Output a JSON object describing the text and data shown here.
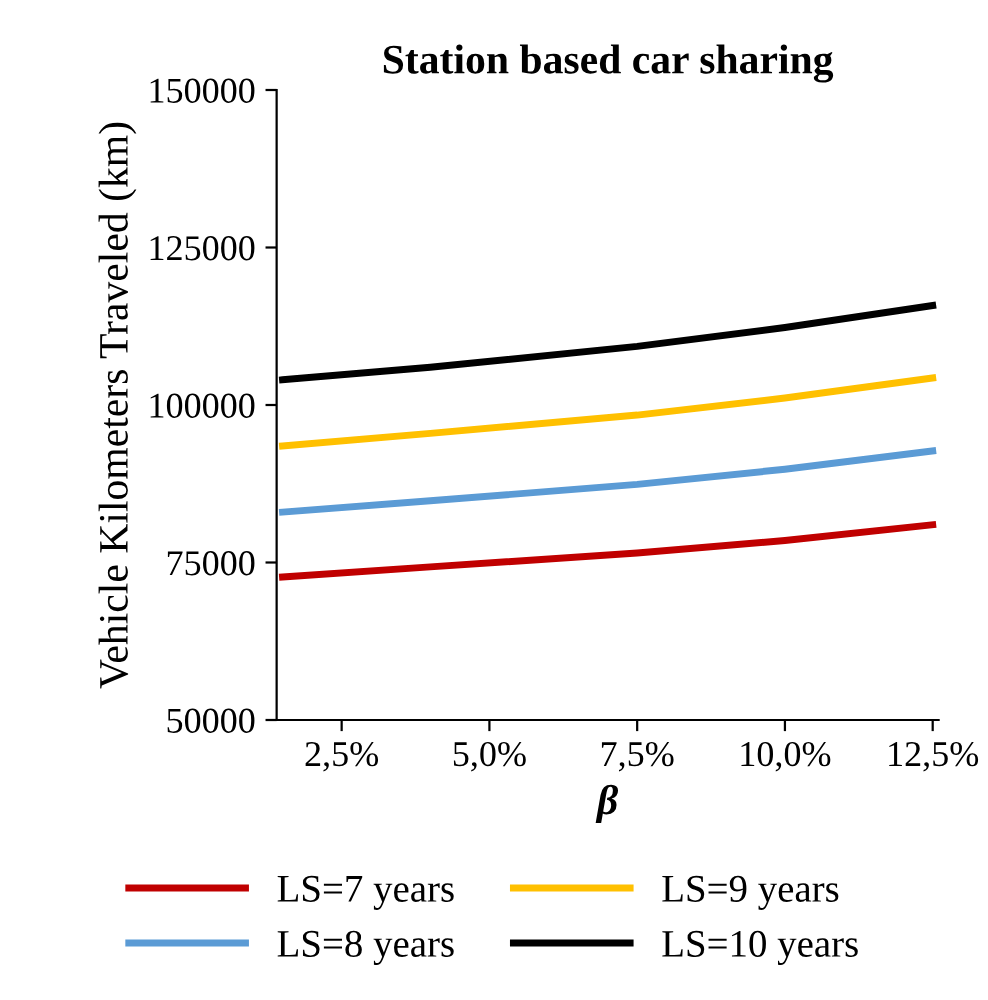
{
  "chart_data": {
    "type": "line",
    "title": "Station based car sharing",
    "xlabel": "β",
    "ylabel": "Vehicle Kilometers Traveled (km)",
    "series": [
      {
        "name": "LS=7 years",
        "color": "#c00000",
        "x": [
          1.5,
          4,
          7.5,
          10,
          12.5
        ],
        "values": [
          72700,
          74300,
          76500,
          78500,
          81000
        ]
      },
      {
        "name": "LS=8 years",
        "color": "#5b9bd5",
        "x": [
          1.5,
          4,
          7.5,
          10,
          12.5
        ],
        "values": [
          83000,
          84800,
          87400,
          89800,
          92700
        ]
      },
      {
        "name": "LS=9 years",
        "color": "#ffc000",
        "x": [
          1.5,
          4,
          7.5,
          10,
          12.5
        ],
        "values": [
          93500,
          95500,
          98400,
          101100,
          104300
        ]
      },
      {
        "name": "LS=10 years",
        "color": "#000000",
        "x": [
          1.5,
          4,
          7.5,
          10,
          12.5
        ],
        "values": [
          104000,
          106000,
          109300,
          112300,
          115800
        ]
      }
    ],
    "xlim": [
      1.4,
      12.6
    ],
    "xticks": [
      {
        "value": 2.5,
        "label": "2,5%"
      },
      {
        "value": 5,
        "label": "5,0%"
      },
      {
        "value": 7.5,
        "label": "7,5%"
      },
      {
        "value": 10,
        "label": "10,0%"
      },
      {
        "value": 12.5,
        "label": "12,5%"
      }
    ],
    "ylim": [
      50000,
      150000
    ],
    "yticks": [
      50000,
      75000,
      100000,
      125000,
      150000
    ],
    "grid": false,
    "legend": "bottom",
    "marker": "none",
    "line_style": "solid"
  }
}
